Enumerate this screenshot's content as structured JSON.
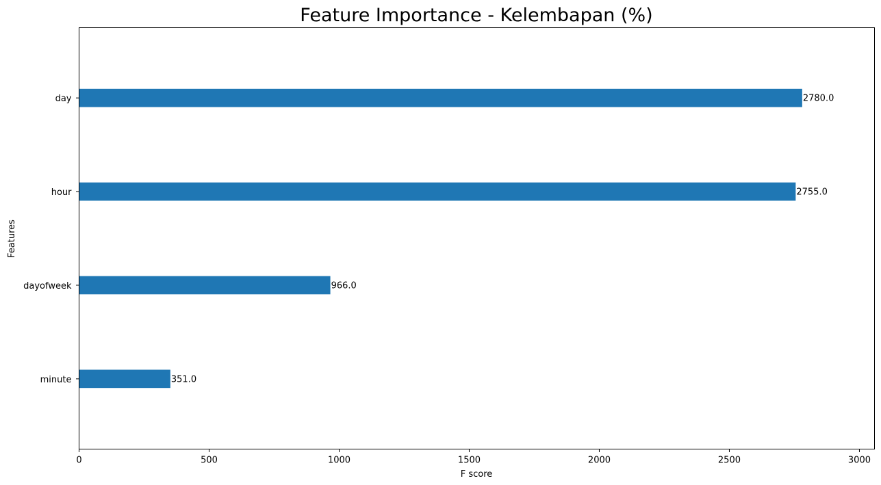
{
  "chart_data": {
    "type": "bar",
    "orientation": "horizontal",
    "title": "Feature Importance - Kelembapan (%)",
    "xlabel": "F score",
    "ylabel": "Features",
    "categories": [
      "minute",
      "dayofweek",
      "hour",
      "day"
    ],
    "values": [
      351,
      966,
      2755,
      2780
    ],
    "value_labels": [
      "351.0",
      "966.0",
      "2755.0",
      "2780.0"
    ],
    "xlim": [
      0,
      3058
    ],
    "xticks": [
      0,
      500,
      1000,
      1500,
      2000,
      2500,
      3000
    ],
    "grid": false,
    "bar_color": "#1f77b4"
  }
}
